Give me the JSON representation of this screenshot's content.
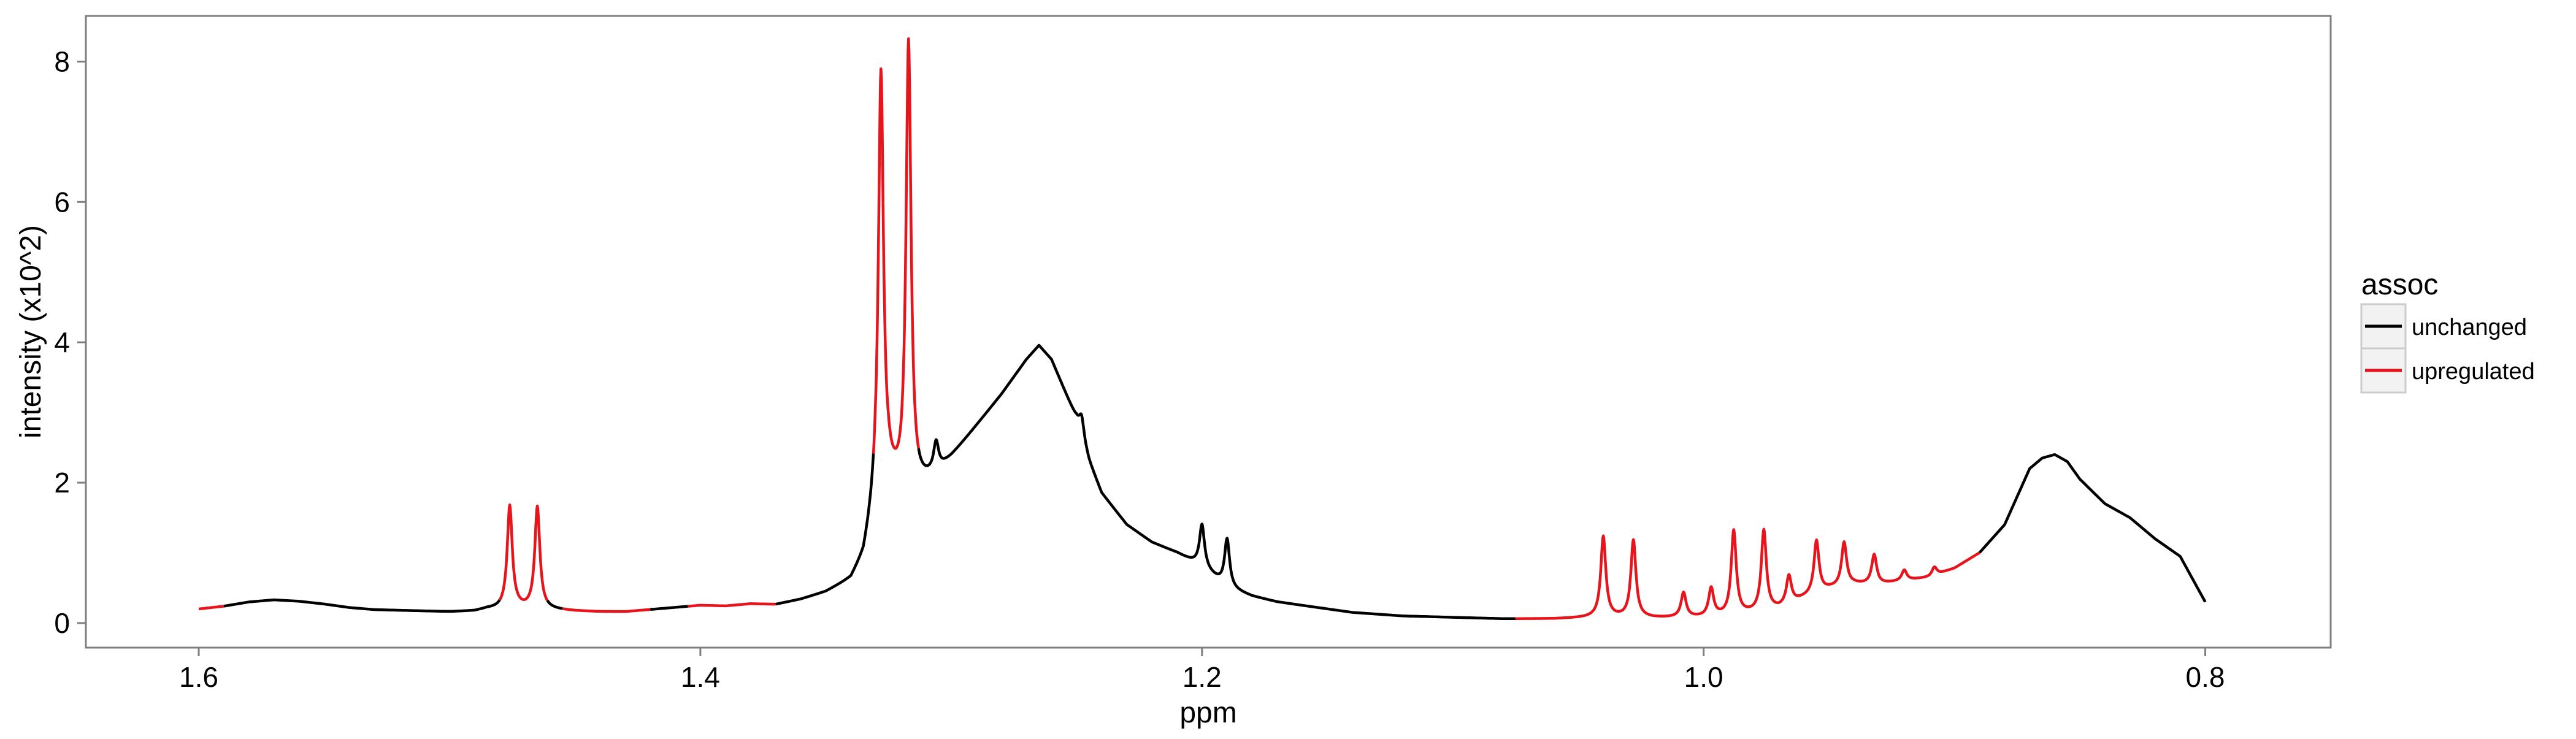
{
  "chart_data": {
    "type": "line",
    "title": "",
    "xlabel": "ppm",
    "ylabel": "intensity (x10^2)",
    "x_reversed": true,
    "xlim": [
      1.645,
      0.75
    ],
    "ylim": [
      -0.35,
      8.65
    ],
    "x_ticks": [
      1.6,
      1.4,
      1.2,
      1.0,
      0.8
    ],
    "x_tick_labels": [
      "1.6",
      "1.4",
      "1.2",
      "1.0",
      "0.8"
    ],
    "y_ticks": [
      0,
      2,
      4,
      6,
      8
    ],
    "y_tick_labels": [
      "0",
      "2",
      "4",
      "6",
      "8"
    ],
    "grid": false,
    "legend": {
      "title": "assoc",
      "position": "right",
      "entries": [
        {
          "label": "unchanged",
          "color": "#000000"
        },
        {
          "label": "upregulated",
          "color": "#e8141c"
        }
      ]
    },
    "baseline": [
      [
        1.6,
        0.2
      ],
      [
        1.59,
        0.24
      ],
      [
        1.58,
        0.3
      ],
      [
        1.57,
        0.33
      ],
      [
        1.56,
        0.31
      ],
      [
        1.55,
        0.27
      ],
      [
        1.54,
        0.22
      ],
      [
        1.53,
        0.19
      ],
      [
        1.52,
        0.18
      ],
      [
        1.5,
        0.16
      ],
      [
        1.49,
        0.17
      ],
      [
        1.485,
        0.2
      ],
      [
        1.48,
        0.2
      ],
      [
        1.475,
        0.22
      ],
      [
        1.47,
        0.2
      ],
      [
        1.465,
        0.2
      ],
      [
        1.46,
        0.19
      ],
      [
        1.45,
        0.17
      ],
      [
        1.44,
        0.16
      ],
      [
        1.43,
        0.16
      ],
      [
        1.42,
        0.19
      ],
      [
        1.41,
        0.22
      ],
      [
        1.4,
        0.25
      ],
      [
        1.39,
        0.24
      ],
      [
        1.38,
        0.27
      ],
      [
        1.37,
        0.26
      ],
      [
        1.36,
        0.33
      ],
      [
        1.35,
        0.43
      ],
      [
        1.34,
        0.6
      ],
      [
        1.335,
        0.9
      ],
      [
        1.33,
        1.7
      ],
      [
        1.325,
        2.0
      ],
      [
        1.32,
        1.85
      ],
      [
        1.315,
        1.85
      ],
      [
        1.31,
        2.0
      ],
      [
        1.305,
        2.15
      ],
      [
        1.3,
        2.35
      ],
      [
        1.29,
        2.8
      ],
      [
        1.28,
        3.25
      ],
      [
        1.27,
        3.75
      ],
      [
        1.265,
        3.95
      ],
      [
        1.26,
        3.75
      ],
      [
        1.25,
        2.9
      ],
      [
        1.245,
        2.3
      ],
      [
        1.24,
        1.85
      ],
      [
        1.23,
        1.4
      ],
      [
        1.22,
        1.15
      ],
      [
        1.21,
        1.0
      ],
      [
        1.2,
        0.8
      ],
      [
        1.19,
        0.5
      ],
      [
        1.18,
        0.38
      ],
      [
        1.17,
        0.3
      ],
      [
        1.16,
        0.25
      ],
      [
        1.15,
        0.2
      ],
      [
        1.14,
        0.15
      ],
      [
        1.12,
        0.1
      ],
      [
        1.1,
        0.08
      ],
      [
        1.08,
        0.06
      ],
      [
        1.06,
        0.06
      ],
      [
        1.04,
        0.08
      ],
      [
        1.02,
        0.07
      ],
      [
        1.0,
        0.08
      ],
      [
        0.99,
        0.1
      ],
      [
        0.98,
        0.14
      ],
      [
        0.97,
        0.2
      ],
      [
        0.96,
        0.35
      ],
      [
        0.95,
        0.48
      ],
      [
        0.94,
        0.55
      ],
      [
        0.93,
        0.55
      ],
      [
        0.92,
        0.6
      ],
      [
        0.91,
        0.65
      ],
      [
        0.9,
        0.78
      ],
      [
        0.89,
        1.0
      ],
      [
        0.88,
        1.4
      ],
      [
        0.875,
        1.8
      ],
      [
        0.87,
        2.2
      ],
      [
        0.865,
        2.35
      ],
      [
        0.86,
        2.4
      ],
      [
        0.855,
        2.3
      ],
      [
        0.85,
        2.05
      ],
      [
        0.84,
        1.7
      ],
      [
        0.83,
        1.5
      ],
      [
        0.82,
        1.2
      ],
      [
        0.81,
        0.95
      ],
      [
        0.8,
        0.3
      ]
    ],
    "peaks": [
      {
        "x": 1.476,
        "height": 1.45,
        "width": 0.0012
      },
      {
        "x": 1.465,
        "height": 1.45,
        "width": 0.0012
      },
      {
        "x": 1.328,
        "height": 6.0,
        "width": 0.0012
      },
      {
        "x": 1.317,
        "height": 6.4,
        "width": 0.0012
      },
      {
        "x": 1.306,
        "height": 0.4,
        "width": 0.0012
      },
      {
        "x": 1.248,
        "height": 0.3,
        "width": 0.0012
      },
      {
        "x": 1.2,
        "height": 0.6,
        "width": 0.0012
      },
      {
        "x": 1.19,
        "height": 0.7,
        "width": 0.0012
      },
      {
        "x": 1.04,
        "height": 1.15,
        "width": 0.0012
      },
      {
        "x": 1.028,
        "height": 1.1,
        "width": 0.0012
      },
      {
        "x": 1.008,
        "height": 0.35,
        "width": 0.0012
      },
      {
        "x": 0.997,
        "height": 0.4,
        "width": 0.0012
      },
      {
        "x": 0.988,
        "height": 1.2,
        "width": 0.0012
      },
      {
        "x": 0.976,
        "height": 1.15,
        "width": 0.0012
      },
      {
        "x": 0.966,
        "height": 0.4,
        "width": 0.0012
      },
      {
        "x": 0.955,
        "height": 0.75,
        "width": 0.0012
      },
      {
        "x": 0.944,
        "height": 0.62,
        "width": 0.0012
      },
      {
        "x": 0.932,
        "height": 0.42,
        "width": 0.0012
      },
      {
        "x": 0.92,
        "height": 0.15,
        "width": 0.0012
      },
      {
        "x": 0.908,
        "height": 0.12,
        "width": 0.0012
      }
    ],
    "segments": [
      {
        "assoc": "upregulated",
        "from": 1.6,
        "to": 1.59
      },
      {
        "assoc": "unchanged",
        "from": 1.59,
        "to": 1.48
      },
      {
        "assoc": "upregulated",
        "from": 1.48,
        "to": 1.461
      },
      {
        "assoc": "unchanged",
        "from": 1.461,
        "to": 1.455
      },
      {
        "assoc": "upregulated",
        "from": 1.455,
        "to": 1.42
      },
      {
        "assoc": "unchanged",
        "from": 1.42,
        "to": 1.405
      },
      {
        "assoc": "upregulated",
        "from": 1.405,
        "to": 1.37
      },
      {
        "assoc": "unchanged",
        "from": 1.37,
        "to": 1.331
      },
      {
        "assoc": "upregulated",
        "from": 1.331,
        "to": 1.313
      },
      {
        "assoc": "unchanged",
        "from": 1.313,
        "to": 1.075
      },
      {
        "assoc": "upregulated",
        "from": 1.075,
        "to": 0.89
      },
      {
        "assoc": "unchanged",
        "from": 0.89,
        "to": 0.8
      }
    ]
  }
}
